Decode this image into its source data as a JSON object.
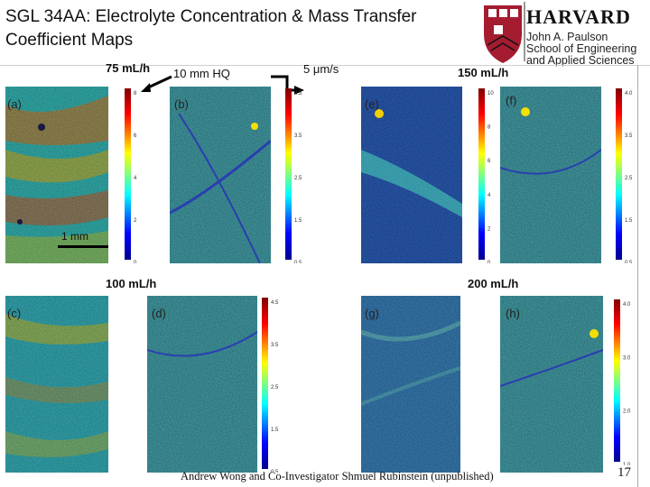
{
  "title": "SGL 34AA: Electrolyte Concentration & Mass Transfer Coefficient Maps",
  "logo": {
    "wordmark": "HARVARD",
    "school_lines": [
      "John A. Paulson",
      "School of Engineering",
      "and Applied Sciences"
    ]
  },
  "labels": {
    "flow_75": "75 mL/h",
    "flow_100": "100 mL/h",
    "flow_150": "150 mL/h",
    "flow_200": "200 mL/h",
    "probe": "10 mm HQ",
    "velocity": "5 μm/s",
    "scale_bar": "1 mm"
  },
  "panels": {
    "a": "(a)",
    "b": "(b)",
    "c": "(c)",
    "d": "(d)",
    "e": "(e)",
    "f": "(f)",
    "g": "(g)",
    "h": "(h)"
  },
  "colorbars": {
    "a": [
      "8",
      "6",
      "4",
      "2",
      "0"
    ],
    "b": [
      "4.5",
      "3.5",
      "2.5",
      "1.5",
      "0.5"
    ],
    "e": [
      "10",
      "8",
      "6",
      "4",
      "2",
      "0"
    ],
    "f": [
      "4.0",
      "3.5",
      "2.5",
      "1.5",
      "0.5"
    ],
    "d": [
      "4.5",
      "3.5",
      "2.5",
      "1.5",
      "0.5"
    ],
    "h": [
      "4.0",
      "3.0",
      "2.0",
      "1.0"
    ]
  },
  "credit": "Andrew Wong and Co-Investigator Shmuel Rubinstein (unpublished)",
  "page_number": "17",
  "colors": {
    "accent": "#a51c30"
  }
}
